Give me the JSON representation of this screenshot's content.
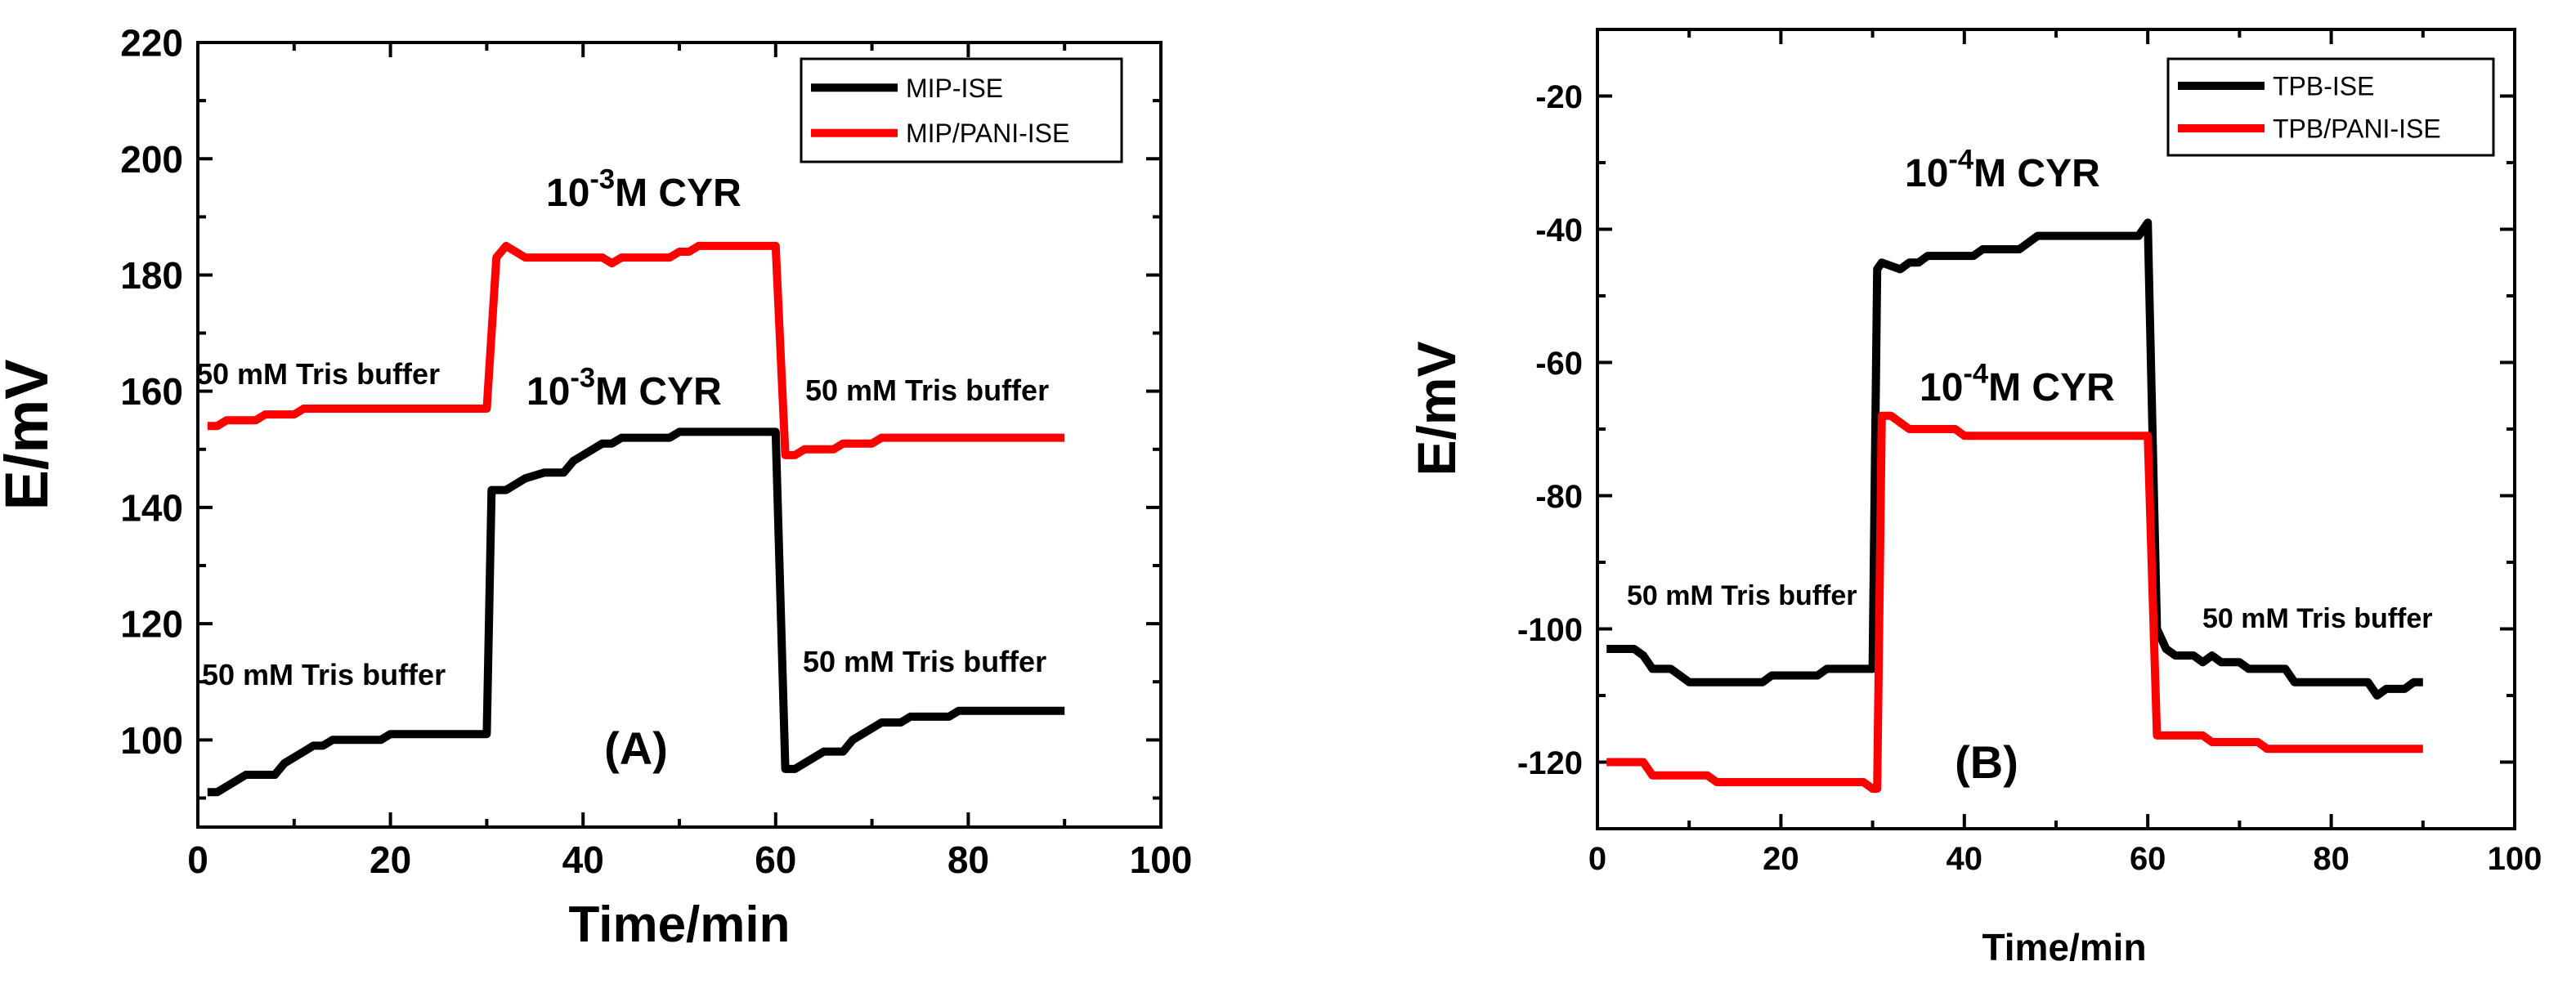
{
  "colors": {
    "black_series": "#000000",
    "red_series": "#ff0000",
    "axes": "#000000"
  },
  "chart_data": [
    {
      "type": "line",
      "panel_label": "(A)",
      "xlabel": "Time/min",
      "ylabel": "E/mV",
      "xlim": [
        0,
        100
      ],
      "ylim": [
        85,
        220
      ],
      "xticks": [
        0,
        20,
        40,
        60,
        80,
        100
      ],
      "yticks": [
        100,
        120,
        140,
        160,
        180,
        200,
        220
      ],
      "xtick_labels": [
        "0",
        "20",
        "40",
        "60",
        "80",
        "100"
      ],
      "ytick_labels": [
        "100",
        "120",
        "140",
        "160",
        "180",
        "200",
        "220"
      ],
      "legend_position": "top-right",
      "series": [
        {
          "name": "MIP-ISE",
          "color": "#000000",
          "points": [
            [
              1,
              91
            ],
            [
              2,
              91
            ],
            [
              4,
              93
            ],
            [
              5,
              94
            ],
            [
              8,
              94
            ],
            [
              9,
              96
            ],
            [
              11,
              98
            ],
            [
              12,
              99
            ],
            [
              13,
              99
            ],
            [
              14,
              100
            ],
            [
              19,
              100
            ],
            [
              20,
              101
            ],
            [
              30,
              101
            ],
            [
              30.5,
              143
            ],
            [
              32,
              143
            ],
            [
              34,
              145
            ],
            [
              36,
              146
            ],
            [
              38,
              146
            ],
            [
              39,
              148
            ],
            [
              42,
              151
            ],
            [
              43,
              151
            ],
            [
              44,
              152
            ],
            [
              49,
              152
            ],
            [
              50,
              153
            ],
            [
              60,
              153
            ],
            [
              61,
              95
            ],
            [
              62,
              95
            ],
            [
              65,
              98
            ],
            [
              67,
              98
            ],
            [
              68,
              100
            ],
            [
              70,
              102
            ],
            [
              71,
              103
            ],
            [
              73,
              103
            ],
            [
              74,
              104
            ],
            [
              78,
              104
            ],
            [
              79,
              105
            ],
            [
              90,
              105
            ]
          ]
        },
        {
          "name": "MIP/PANI-ISE",
          "color": "#ff0000",
          "points": [
            [
              1,
              154
            ],
            [
              2,
              154
            ],
            [
              3,
              155
            ],
            [
              6,
              155
            ],
            [
              7,
              156
            ],
            [
              10,
              156
            ],
            [
              11,
              157
            ],
            [
              30,
              157
            ],
            [
              31,
              183
            ],
            [
              32,
              185
            ],
            [
              34,
              183
            ],
            [
              42,
              183
            ],
            [
              43,
              182
            ],
            [
              44,
              183
            ],
            [
              49,
              183
            ],
            [
              50,
              184
            ],
            [
              51,
              184
            ],
            [
              52,
              185
            ],
            [
              60,
              185
            ],
            [
              61,
              149
            ],
            [
              62,
              149
            ],
            [
              63,
              150
            ],
            [
              66,
              150
            ],
            [
              67,
              151
            ],
            [
              70,
              151
            ],
            [
              71,
              152
            ],
            [
              90,
              152
            ]
          ]
        }
      ],
      "annotations": [
        {
          "id": "cyr-red",
          "base": "10",
          "sup": "-3",
          "rest": "M CYR"
        },
        {
          "id": "cyr-black",
          "base": "10",
          "sup": "-3",
          "rest": "M CYR"
        },
        {
          "id": "tris-red-left",
          "text": "50 mM Tris buffer"
        },
        {
          "id": "tris-red-right",
          "text": "50 mM Tris buffer"
        },
        {
          "id": "tris-black-left",
          "text": "50 mM Tris buffer"
        },
        {
          "id": "tris-black-right",
          "text": "50 mM Tris buffer"
        }
      ]
    },
    {
      "type": "line",
      "panel_label": "(B)",
      "xlabel": "Time/min",
      "ylabel": "E/mV",
      "xlim": [
        0,
        100
      ],
      "ylim": [
        -130,
        -10
      ],
      "xticks": [
        0,
        20,
        40,
        60,
        80,
        100
      ],
      "yticks": [
        -120,
        -100,
        -80,
        -60,
        -40,
        -20
      ],
      "xtick_labels": [
        "0",
        "20",
        "40",
        "60",
        "80",
        "100"
      ],
      "ytick_labels": [
        "-120",
        "-100",
        "-80",
        "-60",
        "-40",
        "-20"
      ],
      "legend_position": "top-right",
      "series": [
        {
          "name": "TPB-ISE",
          "color": "#000000",
          "points": [
            [
              1,
              -103
            ],
            [
              4,
              -103
            ],
            [
              5,
              -104
            ],
            [
              6,
              -106
            ],
            [
              8,
              -106
            ],
            [
              9,
              -107
            ],
            [
              10,
              -108
            ],
            [
              18,
              -108
            ],
            [
              19,
              -107
            ],
            [
              24,
              -107
            ],
            [
              25,
              -106
            ],
            [
              30,
              -106
            ],
            [
              30.5,
              -46
            ],
            [
              31,
              -45
            ],
            [
              33,
              -46
            ],
            [
              34,
              -45
            ],
            [
              35,
              -45
            ],
            [
              36,
              -44
            ],
            [
              41,
              -44
            ],
            [
              42,
              -43
            ],
            [
              46,
              -43
            ],
            [
              47,
              -42
            ],
            [
              48,
              -41
            ],
            [
              59,
              -41
            ],
            [
              60,
              -39
            ],
            [
              61,
              -100
            ],
            [
              62,
              -103
            ],
            [
              63,
              -104
            ],
            [
              65,
              -104
            ],
            [
              66,
              -105
            ],
            [
              67,
              -104
            ],
            [
              68,
              -105
            ],
            [
              70,
              -105
            ],
            [
              71,
              -106
            ],
            [
              75,
              -106
            ],
            [
              76,
              -108
            ],
            [
              84,
              -108
            ],
            [
              85,
              -110
            ],
            [
              86,
              -109
            ],
            [
              88,
              -109
            ],
            [
              89,
              -108
            ],
            [
              90,
              -108
            ]
          ]
        },
        {
          "name": "TPB/PANI-ISE",
          "color": "#ff0000",
          "points": [
            [
              1,
              -120
            ],
            [
              5,
              -120
            ],
            [
              6,
              -122
            ],
            [
              12,
              -122
            ],
            [
              13,
              -123
            ],
            [
              29,
              -123
            ],
            [
              30,
              -124
            ],
            [
              30.5,
              -124
            ],
            [
              31,
              -68
            ],
            [
              32,
              -68
            ],
            [
              33,
              -69
            ],
            [
              34,
              -70
            ],
            [
              39,
              -70
            ],
            [
              40,
              -71
            ],
            [
              60,
              -71
            ],
            [
              61,
              -116
            ],
            [
              66,
              -116
            ],
            [
              67,
              -117
            ],
            [
              72,
              -117
            ],
            [
              73,
              -118
            ],
            [
              90,
              -118
            ]
          ]
        }
      ],
      "annotations": [
        {
          "id": "cyr-black",
          "base": "10",
          "sup": "-4",
          "rest": "M CYR"
        },
        {
          "id": "cyr-red",
          "base": "10",
          "sup": "-4",
          "rest": "M CYR"
        },
        {
          "id": "tris-left",
          "text": "50 mM Tris buffer"
        },
        {
          "id": "tris-right",
          "text": "50 mM Tris buffer"
        }
      ]
    }
  ]
}
